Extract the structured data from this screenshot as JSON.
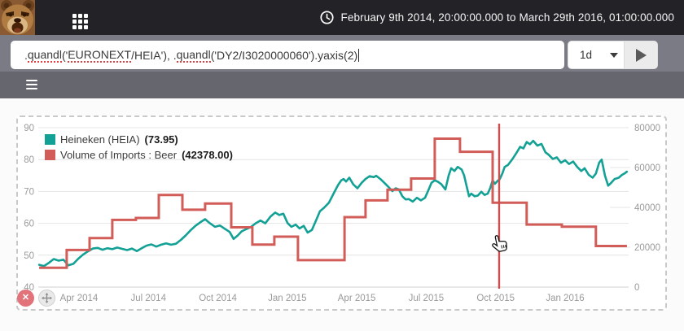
{
  "topbar": {
    "date_range": "February 9th 2014, 20:00:00.000 to March 29th 2016, 01:00:00.000",
    "icons": {
      "logo": "bear-logo",
      "apps": "grid-icon",
      "time": "clock-icon"
    }
  },
  "query_bar": {
    "value": ".quandl('EURONEXT/HEIA'), .quandl('DY2/I3020000060').yaxis(2)",
    "segments": [
      {
        "text": ".",
        "misspelled": false
      },
      {
        "text": "quandl",
        "misspelled": true
      },
      {
        "text": "('",
        "misspelled": false
      },
      {
        "text": "EURONEXT",
        "misspelled": true
      },
      {
        "text": "/HEIA'), .",
        "misspelled": false
      },
      {
        "text": "quandl",
        "misspelled": true
      },
      {
        "text": "('DY2/I3020000060').yaxis(2)",
        "misspelled": false
      }
    ],
    "interval": "1d",
    "icons": {
      "run": "play-icon",
      "interval_caret": "chevron-down-icon"
    }
  },
  "toolbar": {
    "icons": {
      "menu": "hamburger-icon"
    }
  },
  "chart_controls": {
    "close_label": "✕",
    "icons": {
      "close": "close-icon",
      "move": "move-icon"
    }
  },
  "colors": {
    "teal_series": "#14a195",
    "red_series": "#d15c58",
    "crosshair": "#cb4f4c",
    "topbar_bg": "#232327",
    "querybar_bg": "#7b7b86",
    "toolbar_bg": "#66666f",
    "close_button": "#e2737a",
    "gridline": "#e4e4e4",
    "axis_text": "#9a9a9a"
  },
  "chart_data": {
    "type": "line",
    "title": "",
    "x_unit": "months since Feb 2014",
    "x_ticks": [
      {
        "t": 2,
        "label": "Apr 2014"
      },
      {
        "t": 5,
        "label": "Jul 2014"
      },
      {
        "t": 8,
        "label": "Oct 2014"
      },
      {
        "t": 11,
        "label": "Jan 2015"
      },
      {
        "t": 14,
        "label": "Apr 2015"
      },
      {
        "t": 17,
        "label": "Jul 2015"
      },
      {
        "t": 20,
        "label": "Oct 2015"
      },
      {
        "t": 23,
        "label": "Jan 2016"
      }
    ],
    "left_axis": {
      "min": 40,
      "max": 90,
      "ticks": [
        90,
        80,
        70,
        60,
        50,
        40
      ]
    },
    "right_axis": {
      "min": 0,
      "max": 80000,
      "ticks": [
        80000,
        60000,
        40000,
        20000,
        0
      ]
    },
    "grid": true,
    "legend_position": "top-left",
    "crosshair_t": 20.15,
    "series": [
      {
        "name": "Heineken (HEIA)",
        "value_label": "(73.95)",
        "current_value": 73.95,
        "axis": "left",
        "style": "line",
        "color": "#14a195",
        "points": [
          [
            0.28,
            47.0
          ],
          [
            0.49,
            46.6
          ],
          [
            0.7,
            47.6
          ],
          [
            0.91,
            48.8
          ],
          [
            1.12,
            48.3
          ],
          [
            1.33,
            48.6
          ],
          [
            1.54,
            46.8
          ],
          [
            1.76,
            47.3
          ],
          [
            1.97,
            48.9
          ],
          [
            2.18,
            50.2
          ],
          [
            2.39,
            51.2
          ],
          [
            2.6,
            52.1
          ],
          [
            2.81,
            52.3
          ],
          [
            3.02,
            51.7
          ],
          [
            3.23,
            52.2
          ],
          [
            3.44,
            51.9
          ],
          [
            3.65,
            52.4
          ],
          [
            3.87,
            52.0
          ],
          [
            4.08,
            51.6
          ],
          [
            4.29,
            52.1
          ],
          [
            4.5,
            51.3
          ],
          [
            4.71,
            52.2
          ],
          [
            4.92,
            53.0
          ],
          [
            5.13,
            53.4
          ],
          [
            5.34,
            52.7
          ],
          [
            5.55,
            53.3
          ],
          [
            5.76,
            53.7
          ],
          [
            5.98,
            53.3
          ],
          [
            6.19,
            53.6
          ],
          [
            6.4,
            54.8
          ],
          [
            6.61,
            56.2
          ],
          [
            6.82,
            57.8
          ],
          [
            7.03,
            59.2
          ],
          [
            7.24,
            60.3
          ],
          [
            7.45,
            61.3
          ],
          [
            7.66,
            60.0
          ],
          [
            7.88,
            58.9
          ],
          [
            8.09,
            59.3
          ],
          [
            8.3,
            58.3
          ],
          [
            8.51,
            57.3
          ],
          [
            8.68,
            55.1
          ],
          [
            8.86,
            56.2
          ],
          [
            9.03,
            57.5
          ],
          [
            9.21,
            58.1
          ],
          [
            9.42,
            58.8
          ],
          [
            9.63,
            60.0
          ],
          [
            9.84,
            60.9
          ],
          [
            10.05,
            60.0
          ],
          [
            10.27,
            62.1
          ],
          [
            10.48,
            63.4
          ],
          [
            10.65,
            62.6
          ],
          [
            10.83,
            63.0
          ],
          [
            11.01,
            60.1
          ],
          [
            11.18,
            58.9
          ],
          [
            11.36,
            59.6
          ],
          [
            11.53,
            58.4
          ],
          [
            11.71,
            59.2
          ],
          [
            11.88,
            57.1
          ],
          [
            12.06,
            57.9
          ],
          [
            12.24,
            60.9
          ],
          [
            12.41,
            63.8
          ],
          [
            12.59,
            64.9
          ],
          [
            12.8,
            66.5
          ],
          [
            13.01,
            69.5
          ],
          [
            13.19,
            72.0
          ],
          [
            13.33,
            73.5
          ],
          [
            13.43,
            73.9
          ],
          [
            13.54,
            73.1
          ],
          [
            13.68,
            74.3
          ],
          [
            13.85,
            72.2
          ],
          [
            14.03,
            71.0
          ],
          [
            14.21,
            72.7
          ],
          [
            14.38,
            73.9
          ],
          [
            14.56,
            74.8
          ],
          [
            14.73,
            74.5
          ],
          [
            14.84,
            74.9
          ],
          [
            15.02,
            73.9
          ],
          [
            15.19,
            72.7
          ],
          [
            15.37,
            71.4
          ],
          [
            15.54,
            70.1
          ],
          [
            15.68,
            71.0
          ],
          [
            15.82,
            70.6
          ],
          [
            15.97,
            68.5
          ],
          [
            16.11,
            67.5
          ],
          [
            16.25,
            67.6
          ],
          [
            16.42,
            66.8
          ],
          [
            16.6,
            68.0
          ],
          [
            16.77,
            67.2
          ],
          [
            16.95,
            68.0
          ],
          [
            17.13,
            71.0
          ],
          [
            17.23,
            72.7
          ],
          [
            17.37,
            73.5
          ],
          [
            17.51,
            73.0
          ],
          [
            17.65,
            72.3
          ],
          [
            17.83,
            70.6
          ],
          [
            17.97,
            75.0
          ],
          [
            18.08,
            77.3
          ],
          [
            18.22,
            76.4
          ],
          [
            18.36,
            77.7
          ],
          [
            18.53,
            76.9
          ],
          [
            18.64,
            75.0
          ],
          [
            18.74,
            71.8
          ],
          [
            18.85,
            68.5
          ],
          [
            18.95,
            69.3
          ],
          [
            19.09,
            68.5
          ],
          [
            19.23,
            68.7
          ],
          [
            19.38,
            69.9
          ],
          [
            19.52,
            68.9
          ],
          [
            19.66,
            69.3
          ],
          [
            19.76,
            71.0
          ],
          [
            19.87,
            73.5
          ],
          [
            19.97,
            72.4
          ],
          [
            20.08,
            73.3
          ],
          [
            20.18,
            73.9
          ],
          [
            20.29,
            75.6
          ],
          [
            20.39,
            77.7
          ],
          [
            20.53,
            78.3
          ],
          [
            20.71,
            80.0
          ],
          [
            20.89,
            82.0
          ],
          [
            21.06,
            84.0
          ],
          [
            21.2,
            83.5
          ],
          [
            21.34,
            85.5
          ],
          [
            21.48,
            84.8
          ],
          [
            21.62,
            85.9
          ],
          [
            21.8,
            84.4
          ],
          [
            21.98,
            84.9
          ],
          [
            22.15,
            82.3
          ],
          [
            22.29,
            81.5
          ],
          [
            22.47,
            80.2
          ],
          [
            22.64,
            80.7
          ],
          [
            22.82,
            79.0
          ],
          [
            23.0,
            79.8
          ],
          [
            23.17,
            78.6
          ],
          [
            23.35,
            79.4
          ],
          [
            23.52,
            77.7
          ],
          [
            23.7,
            76.4
          ],
          [
            23.84,
            77.3
          ],
          [
            24.02,
            75.2
          ],
          [
            24.19,
            74.3
          ],
          [
            24.33,
            75.6
          ],
          [
            24.47,
            79.0
          ],
          [
            24.58,
            80.0
          ],
          [
            24.72,
            75.0
          ],
          [
            24.86,
            71.8
          ],
          [
            25.0,
            72.8
          ],
          [
            25.14,
            73.9
          ],
          [
            25.32,
            74.3
          ],
          [
            25.46,
            75.2
          ],
          [
            25.56,
            75.6
          ],
          [
            25.67,
            76.2
          ]
        ]
      },
      {
        "name": "Volume of Imports : Beer",
        "value_label": "(42378.00)",
        "current_value": 42378.0,
        "axis": "right",
        "style": "step",
        "color": "#d15c58",
        "segments": [
          [
            0.28,
            1.47,
            9700
          ],
          [
            1.47,
            2.46,
            18600
          ],
          [
            2.46,
            3.44,
            24600
          ],
          [
            3.44,
            4.46,
            33700
          ],
          [
            4.46,
            5.45,
            34700
          ],
          [
            5.45,
            6.47,
            46200
          ],
          [
            6.47,
            7.45,
            38800
          ],
          [
            7.45,
            8.58,
            41900
          ],
          [
            8.58,
            9.49,
            30000
          ],
          [
            9.49,
            10.44,
            21300
          ],
          [
            10.44,
            11.46,
            25300
          ],
          [
            11.46,
            13.47,
            13500
          ],
          [
            13.47,
            14.38,
            35100
          ],
          [
            14.38,
            15.33,
            43500
          ],
          [
            15.33,
            16.35,
            48900
          ],
          [
            16.35,
            17.37,
            54500
          ],
          [
            17.37,
            18.46,
            74500
          ],
          [
            18.46,
            19.87,
            67900
          ],
          [
            19.87,
            21.34,
            42378
          ],
          [
            21.34,
            22.86,
            31400
          ],
          [
            22.86,
            24.33,
            30300
          ],
          [
            24.33,
            25.67,
            20600
          ]
        ]
      }
    ]
  }
}
